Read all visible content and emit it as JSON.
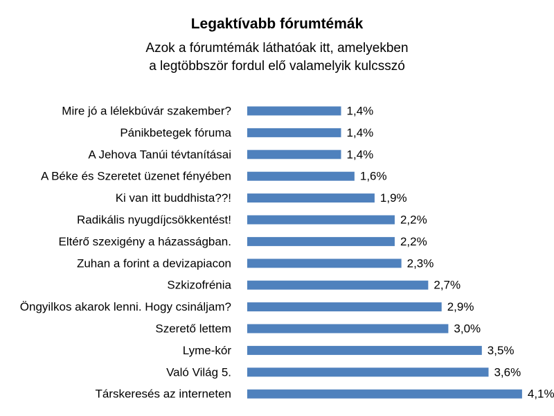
{
  "chart": {
    "title": "Legaktívabb fórumtémák",
    "subtitle_line_1": "Azok a fórumtémák láthatóak itt, amelyekben",
    "subtitle_line_2": "a legtöbbször fordul elő valamelyik kulcsszó"
  },
  "chart_data": {
    "type": "bar",
    "orientation": "horizontal",
    "title": "Legaktívabb fórumtémák",
    "subtitle": "Azok a fórumtémák láthatóak itt, amelyekben a legtöbbször fordul elő valamelyik kulcsszó",
    "xlabel": "",
    "ylabel": "",
    "grid": false,
    "legend": "none",
    "bar_color": "#4F81BD",
    "value_format": "percent_comma_1_decimal",
    "categories": [
      "Mire jó a lélekbúvár szakember?",
      "Pánikbetegek fóruma",
      "A Jehova Tanúi tévtanításai",
      "A Béke és Szeretet üzenet fényében",
      "Ki van itt buddhista??!",
      "Radikális nyugdíjcsökkentést!",
      "Eltérő szexigény a házasságban.",
      "Zuhan a forint a devizapiacon",
      "Szkizofrénia",
      "Öngyilkos akarok lenni. Hogy csináljam?",
      "Szerető lettem",
      "Lyme-kór",
      "Való Világ 5.",
      "Társkeresés az interneten"
    ],
    "values": [
      1.4,
      1.4,
      1.4,
      1.6,
      1.9,
      2.2,
      2.2,
      2.3,
      2.7,
      2.9,
      3.0,
      3.5,
      3.6,
      4.1
    ],
    "value_labels": [
      "1,4%",
      "1,4%",
      "1,4%",
      "1,6%",
      "1,9%",
      "2,2%",
      "2,2%",
      "2,3%",
      "2,7%",
      "2,9%",
      "3,0%",
      "3,5%",
      "3,6%",
      "4,1%"
    ]
  }
}
